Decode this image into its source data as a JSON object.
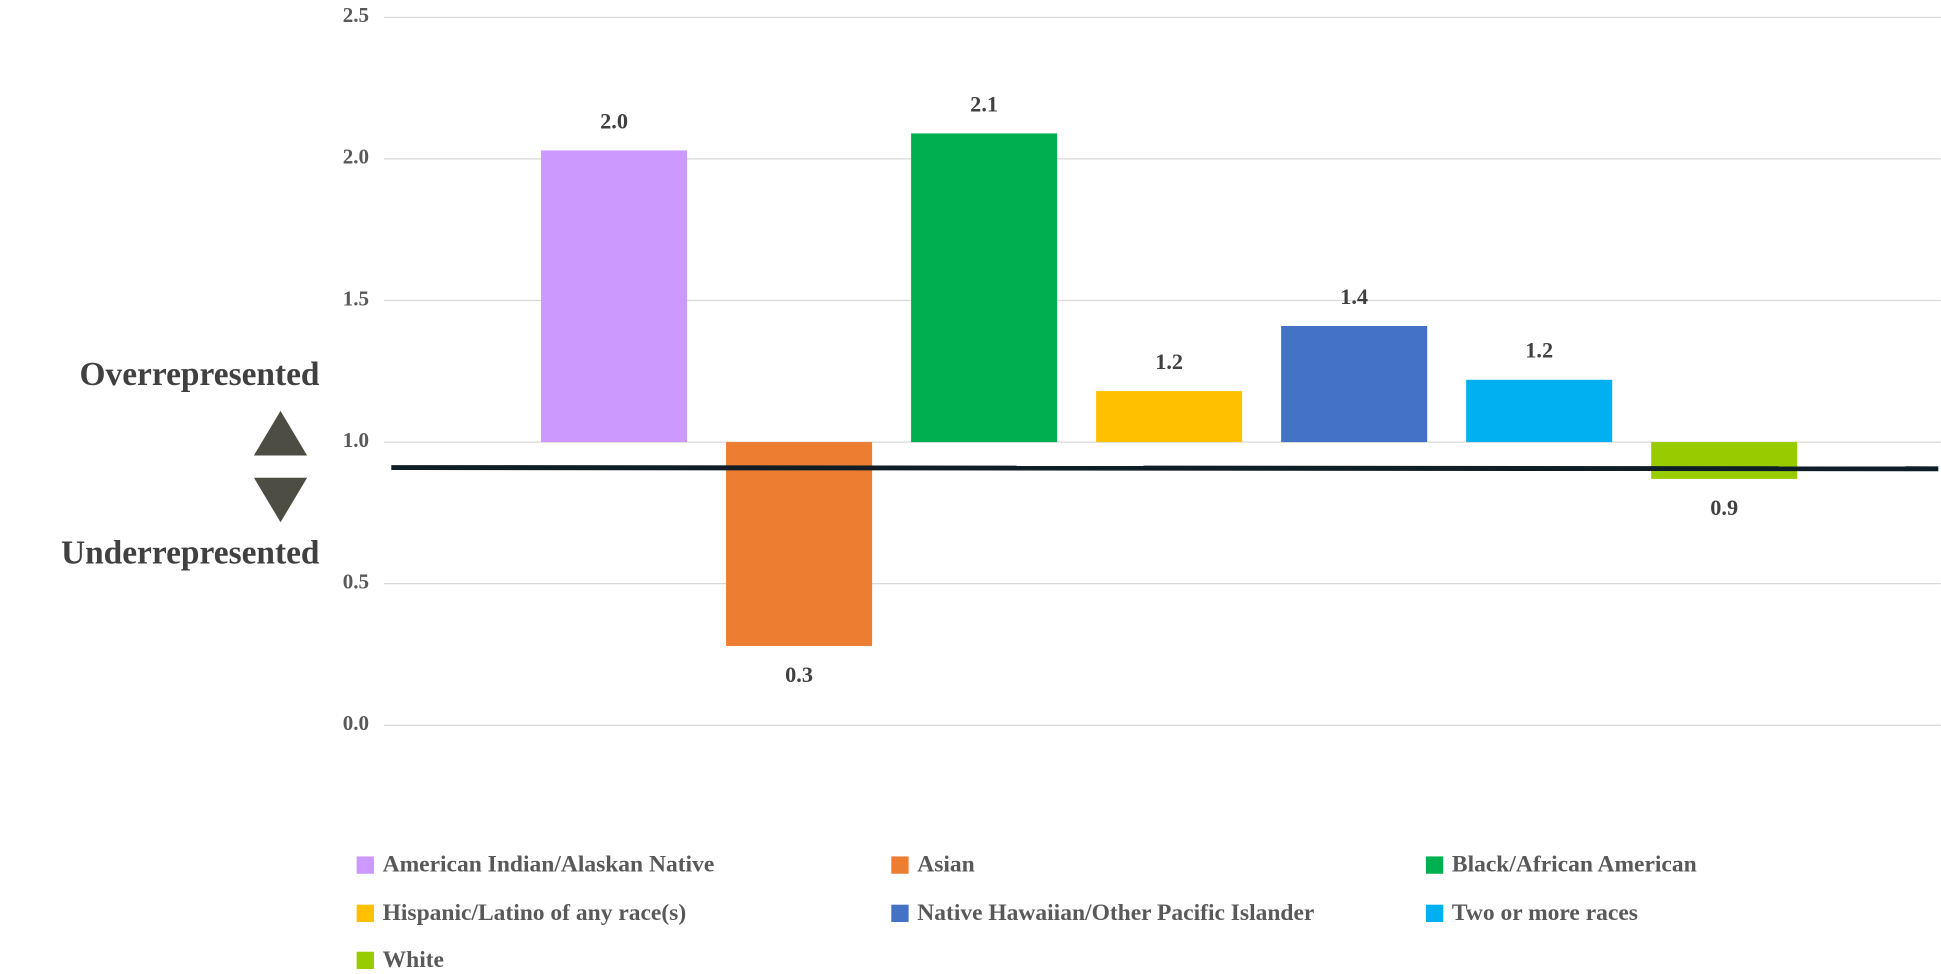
{
  "chart_data": {
    "type": "bar",
    "categories": [
      "American Indian/Alaskan Native",
      "Asian",
      "Black/African American",
      "Hispanic/Latino of any race(s)",
      "Native Hawaiian/Other Pacific Islander",
      "Two or more races",
      "White"
    ],
    "values": [
      2.03,
      0.28,
      2.09,
      1.18,
      1.41,
      1.22,
      0.87
    ],
    "value_labels": [
      "2.0",
      "0.3",
      "2.1",
      "1.2",
      "1.4",
      "1.2",
      "0.9"
    ],
    "colors": [
      "#cc99ff",
      "#ed7d31",
      "#00b050",
      "#ffc000",
      "#4472c4",
      "#00b0f0",
      "#99cc00"
    ],
    "base": {
      "value": 1,
      "label": "1.0"
    },
    "reference_line": 0.91,
    "ylim": [
      0,
      2.5
    ],
    "yticks": [
      {
        "value": 0,
        "label": "0.0"
      },
      0.5,
      {
        "value": 1,
        "label": "1.0"
      },
      1.5,
      {
        "value": 2,
        "label": "2.0"
      },
      2.5
    ],
    "grid": true,
    "annotations": [
      "Overrepresented",
      "Underrepresented"
    ]
  }
}
